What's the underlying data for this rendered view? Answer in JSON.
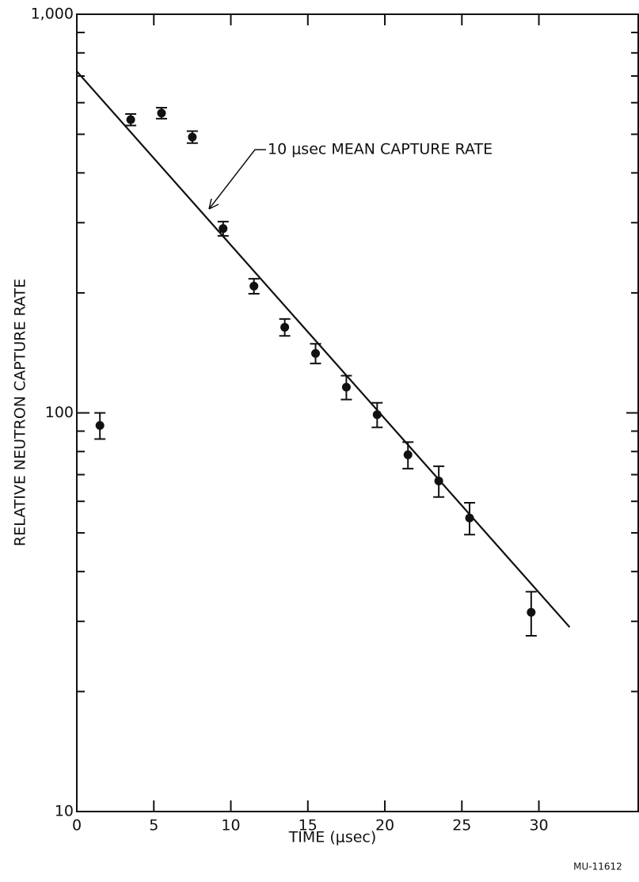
{
  "chart_data": {
    "type": "scatter",
    "xlabel": "TIME (μsec)",
    "ylabel": "RELATIVE NEUTRON CAPTURE RATE",
    "annotation": "10 μsec MEAN CAPTURE RATE",
    "footnote": "MU-11612",
    "log_y": true,
    "xlim": [
      0,
      36.5
    ],
    "ylim": [
      10,
      1000
    ],
    "xticks": [
      0,
      5,
      10,
      15,
      20,
      25,
      30
    ],
    "yticks": [
      10,
      100,
      {
        "value": 1000,
        "label": "1,000"
      }
    ],
    "series": [
      {
        "color": "#111111",
        "x": [
          1.5,
          3.5,
          5.5,
          7.5,
          9.5,
          11.5,
          13.5,
          15.5,
          17.5,
          19.5,
          21.5,
          23.5,
          25.5,
          29.5
        ],
        "values": [
          93,
          544,
          565,
          492,
          290,
          208,
          164,
          141,
          116,
          99,
          78.5,
          67.5,
          54.5,
          31.6
        ],
        "errors": [
          7,
          18,
          18,
          17,
          12,
          9,
          8,
          8,
          8,
          7,
          6,
          6,
          5,
          4
        ]
      },
      {
        "color": "#111111",
        "kind": "line",
        "x": [
          0,
          32
        ],
        "values": [
          719,
          29
        ]
      }
    ]
  }
}
